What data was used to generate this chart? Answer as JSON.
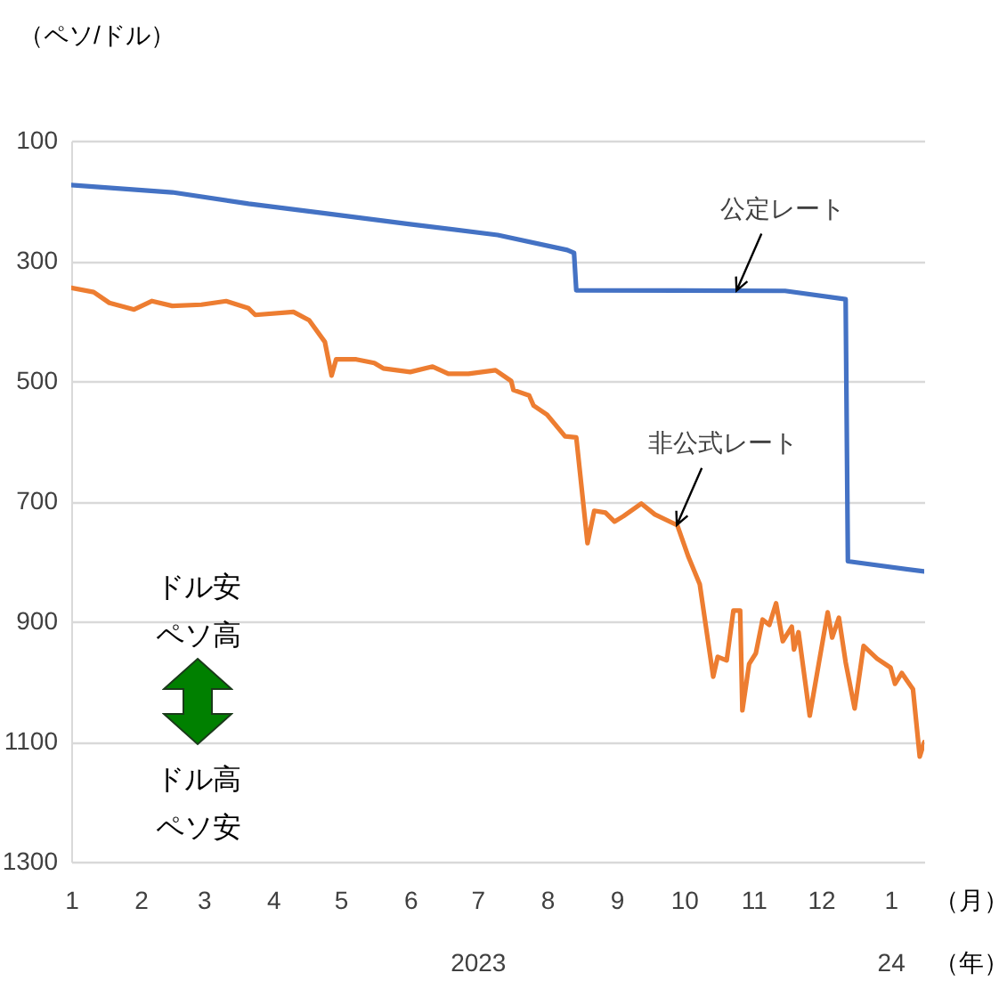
{
  "chart_data": {
    "type": "line",
    "ylabel": "（ペソ/ドル）",
    "xlabel": "（月）",
    "x2label": "（年）",
    "xlim": [
      "2023-01-01",
      "2024-01-16"
    ],
    "xticks": [
      {
        "value": "2023-01-01",
        "label": "1"
      },
      {
        "value": "2023-02-01",
        "label": "2"
      },
      {
        "value": "2023-03-01",
        "label": "3"
      },
      {
        "value": "2023-04-01",
        "label": "4"
      },
      {
        "value": "2023-05-01",
        "label": "5"
      },
      {
        "value": "2023-06-01",
        "label": "6"
      },
      {
        "value": "2023-07-01",
        "label": "7"
      },
      {
        "value": "2023-08-01",
        "label": "8"
      },
      {
        "value": "2023-09-01",
        "label": "9"
      },
      {
        "value": "2023-10-01",
        "label": "10"
      },
      {
        "value": "2023-11-01",
        "label": "11"
      },
      {
        "value": "2023-12-01",
        "label": "12"
      },
      {
        "value": "2024-01-01",
        "label": "1"
      }
    ],
    "x2lim": [
      "2023-01-01",
      "2024-01-16"
    ],
    "x2ticks": [
      {
        "value": "2023-07-01",
        "label": "2023"
      },
      {
        "value": "2024-01-01",
        "label": "24"
      }
    ],
    "ylim": [
      1300,
      100
    ],
    "yticks": [
      100,
      300,
      500,
      700,
      900,
      1100,
      1300
    ],
    "grid": "y",
    "line_style": "solid",
    "annotations": [
      "ドル安ペソ高",
      "ドル高ペソ安"
    ],
    "series": [
      {
        "name": "公定レート",
        "color": "#4472c4",
        "x": [
          "2023-01-01",
          "2023-02-15",
          "2023-03-21",
          "2023-04-24",
          "2023-06-01",
          "2023-07-10",
          "2023-08-10",
          "2023-08-13",
          "2023-08-14",
          "2023-11-15",
          "2023-12-12",
          "2023-12-13",
          "2024-01-16"
        ],
        "values": [
          174,
          186,
          205,
          221,
          239,
          257,
          282,
          287,
          349,
          350,
          364,
          800,
          817
        ]
      },
      {
        "name": "非公式レート",
        "color": "#ed7d31",
        "x": [
          "2023-01-01",
          "2023-01-11",
          "2023-01-18",
          "2023-01-29",
          "2023-02-06",
          "2023-02-15",
          "2023-02-28",
          "2023-03-11",
          "2023-03-21",
          "2023-03-24",
          "2023-04-10",
          "2023-04-17",
          "2023-04-24",
          "2023-04-27",
          "2023-04-29",
          "2023-05-08",
          "2023-05-16",
          "2023-05-20",
          "2023-06-01",
          "2023-06-11",
          "2023-06-18",
          "2023-06-27",
          "2023-07-09",
          "2023-07-16",
          "2023-07-17",
          "2023-07-24",
          "2023-07-26",
          "2023-08-01",
          "2023-08-09",
          "2023-08-14",
          "2023-08-19",
          "2023-08-22",
          "2023-08-27",
          "2023-08-31",
          "2023-09-04",
          "2023-09-12",
          "2023-09-18",
          "2023-09-28",
          "2023-10-03",
          "2023-10-08",
          "2023-10-14",
          "2023-10-16",
          "2023-10-20",
          "2023-10-23",
          "2023-10-26",
          "2023-10-27",
          "2023-10-30",
          "2023-11-02",
          "2023-11-05",
          "2023-11-08",
          "2023-11-11",
          "2023-11-14",
          "2023-11-18",
          "2023-11-19",
          "2023-11-21",
          "2023-11-26",
          "2023-11-30",
          "2023-12-04",
          "2023-12-06",
          "2023-12-09",
          "2023-12-12",
          "2023-12-16",
          "2023-12-20",
          "2023-12-26",
          "2024-01-01",
          "2024-01-03",
          "2024-01-06",
          "2024-01-11",
          "2024-01-14",
          "2024-01-16"
        ],
        "values": [
          345,
          352,
          370,
          381,
          367,
          375,
          373,
          367,
          379,
          390,
          385,
          399,
          435,
          491,
          464,
          464,
          470,
          479,
          485,
          476,
          488,
          488,
          482,
          500,
          515,
          524,
          541,
          556,
          592,
          594,
          770,
          716,
          719,
          734,
          725,
          704,
          722,
          740,
          793,
          838,
          992,
          959,
          965,
          882,
          882,
          1048,
          971,
          953,
          897,
          906,
          870,
          933,
          909,
          947,
          918,
          1057,
          971,
          885,
          927,
          894,
          968,
          1045,
          941,
          962,
          977,
          1004,
          986,
          1013,
          1125,
          1101
        ]
      }
    ]
  }
}
